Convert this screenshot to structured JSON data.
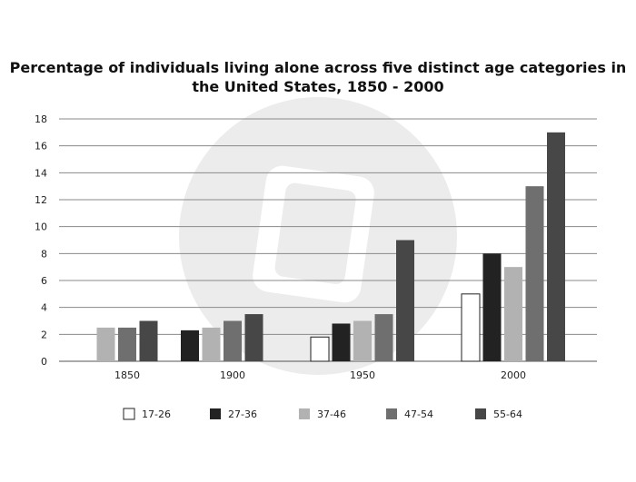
{
  "chart_data": {
    "type": "bar",
    "title_lines": [
      "Percentage of individuals living alone across five distinct age categories in",
      "the United States, 1850 - 2000"
    ],
    "xlabel": "",
    "ylabel": "",
    "categories": [
      "1850",
      "1900",
      "1950",
      "2000"
    ],
    "ylim": [
      0,
      18
    ],
    "yticks": [
      0,
      2,
      4,
      6,
      8,
      10,
      12,
      14,
      16,
      18
    ],
    "grid": true,
    "legend_position": "bottom",
    "series": [
      {
        "name": "17-26",
        "color": "#ffffff",
        "values": [
          null,
          null,
          1.8,
          5
        ]
      },
      {
        "name": "27-36",
        "color": "#222222",
        "values": [
          null,
          2.3,
          2.8,
          8
        ]
      },
      {
        "name": "37-46",
        "color": "#b2b2b2",
        "values": [
          2.5,
          2.5,
          3,
          7
        ]
      },
      {
        "name": "47-54",
        "color": "#6f6f6f",
        "values": [
          2.5,
          3,
          3.5,
          13
        ]
      },
      {
        "name": "55-64",
        "color": "#474747",
        "values": [
          3,
          3.5,
          9,
          17
        ]
      }
    ]
  }
}
